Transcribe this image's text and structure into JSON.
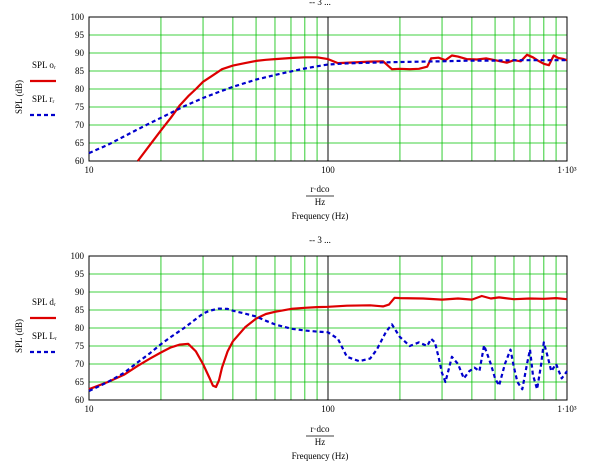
{
  "chart_data": [
    {
      "type": "line",
      "top_label": "-- 3 ...",
      "x_scale": "log",
      "xlim": [
        10,
        1000
      ],
      "ylim": [
        60,
        100
      ],
      "x_ticks": [
        "10",
        "100",
        "1·10³"
      ],
      "y_ticks": [
        "60",
        "65",
        "70",
        "75",
        "80",
        "85",
        "90",
        "95",
        "100"
      ],
      "xlabel_lines": [
        "r·dco",
        "Hz",
        "Frequency (Hz)"
      ],
      "ylabel": "SPL (dB)",
      "grid": true,
      "legend": [
        {
          "name": "SPL oᵣ",
          "style": "solid",
          "color": "#dd0000"
        },
        {
          "name": "SPL rᵣ",
          "style": "dashed",
          "color": "#0000cc"
        }
      ],
      "series": [
        {
          "name": "SPL oᵣ",
          "color": "#dd0000",
          "style": "solid",
          "x": [
            16,
            18,
            20,
            22,
            24,
            26,
            28,
            30,
            33,
            36,
            40,
            45,
            50,
            55,
            60,
            70,
            80,
            90,
            100,
            110,
            130,
            150,
            170,
            185,
            200,
            220,
            240,
            260,
            270,
            290,
            310,
            330,
            350,
            380,
            420,
            460,
            500,
            560,
            600,
            640,
            680,
            720,
            760,
            800,
            840,
            880,
            920,
            960,
            1000
          ],
          "y": [
            60,
            64.5,
            68.5,
            72,
            75.5,
            78,
            80,
            82,
            83.8,
            85.5,
            86.5,
            87.2,
            87.8,
            88.1,
            88.3,
            88.6,
            88.8,
            88.8,
            88.3,
            87.2,
            87.4,
            87.6,
            87.7,
            85.5,
            85.6,
            85.5,
            85.6,
            86.2,
            88.5,
            88.7,
            88,
            89.3,
            89,
            88.3,
            88.2,
            88.5,
            88,
            87.3,
            88,
            87.7,
            89.5,
            88.8,
            87.8,
            87,
            86.6,
            89.3,
            88.6,
            88.4,
            88
          ]
        },
        {
          "name": "SPL rᵣ",
          "color": "#0000cc",
          "style": "dashed",
          "x": [
            10,
            12,
            14,
            16,
            18,
            20,
            25,
            30,
            35,
            40,
            50,
            60,
            70,
            80,
            90,
            100,
            120,
            150,
            200,
            300,
            400,
            500,
            600,
            800,
            1000
          ],
          "y": [
            62.2,
            64.5,
            66.8,
            68.8,
            70.5,
            72,
            75.2,
            77.5,
            79.2,
            80.6,
            82.6,
            83.9,
            84.9,
            85.7,
            86.3,
            86.8,
            87.1,
            87.3,
            87.5,
            87.7,
            87.9,
            87.9,
            88,
            88,
            88
          ]
        }
      ]
    },
    {
      "type": "line",
      "top_label": "-- 3 ...",
      "x_scale": "log",
      "xlim": [
        10,
        1000
      ],
      "ylim": [
        60,
        100
      ],
      "x_ticks": [
        "10",
        "100",
        "1·10³"
      ],
      "y_ticks": [
        "60",
        "65",
        "70",
        "75",
        "80",
        "85",
        "90",
        "95",
        "100"
      ],
      "xlabel_lines": [
        "r·dco",
        "Hz",
        "Frequency (Hz)"
      ],
      "ylabel": "SPL (dB)",
      "grid": true,
      "legend": [
        {
          "name": "SPL dᵣ",
          "style": "solid",
          "color": "#dd0000"
        },
        {
          "name": "SPL Lᵣ",
          "style": "dashed",
          "color": "#0000cc"
        }
      ],
      "series": [
        {
          "name": "SPL dᵣ",
          "color": "#dd0000",
          "style": "solid",
          "x": [
            10,
            12,
            14,
            16,
            18,
            20,
            22,
            24,
            26,
            28,
            30,
            32,
            33,
            34,
            35,
            36,
            38,
            40,
            45,
            50,
            55,
            60,
            70,
            80,
            90,
            100,
            120,
            150,
            170,
            180,
            190,
            200,
            250,
            300,
            350,
            400,
            440,
            480,
            520,
            600,
            700,
            800,
            900,
            1000
          ],
          "y": [
            63,
            65,
            67,
            69.5,
            71.5,
            73.2,
            74.6,
            75.4,
            75.6,
            73.5,
            70,
            66,
            64,
            63.6,
            65.5,
            69,
            73.5,
            76.3,
            80.2,
            82.6,
            83.9,
            84.5,
            85.3,
            85.6,
            85.8,
            85.9,
            86.2,
            86.3,
            86,
            86.5,
            88.4,
            88.3,
            88.2,
            87.9,
            88.2,
            87.9,
            88.9,
            88.2,
            88.5,
            88,
            88.2,
            88.1,
            88.3,
            88
          ]
        },
        {
          "name": "SPL Lᵣ",
          "color": "#0000cc",
          "style": "dashed",
          "x": [
            10,
            12,
            14,
            16,
            18,
            20,
            22,
            25,
            28,
            30,
            32,
            35,
            38,
            40,
            45,
            50,
            55,
            60,
            70,
            80,
            90,
            100,
            110,
            120,
            135,
            150,
            160,
            175,
            185,
            200,
            220,
            240,
            260,
            270,
            280,
            290,
            300,
            310,
            320,
            330,
            350,
            370,
            390,
            410,
            430,
            450,
            480,
            500,
            520,
            550,
            580,
            600,
            620,
            650,
            680,
            700,
            720,
            750,
            780,
            800,
            830,
            860,
            900,
            950,
            1000
          ],
          "y": [
            62.5,
            65,
            67.5,
            70.5,
            73,
            75.5,
            77.5,
            80,
            82.5,
            84,
            84.8,
            85.4,
            85.3,
            84.8,
            84,
            83.2,
            82,
            81,
            79.8,
            79.3,
            79,
            78.8,
            77,
            72,
            70.8,
            71.5,
            74,
            79,
            81,
            77.5,
            75,
            76,
            75,
            77,
            76,
            72,
            67.5,
            65,
            68.5,
            72,
            70,
            66,
            68,
            69,
            68,
            75.2,
            70,
            66,
            64,
            70,
            74,
            69,
            65,
            63,
            70,
            74,
            67,
            63,
            70,
            76,
            72,
            68,
            70,
            66,
            68
          ]
        }
      ]
    }
  ]
}
